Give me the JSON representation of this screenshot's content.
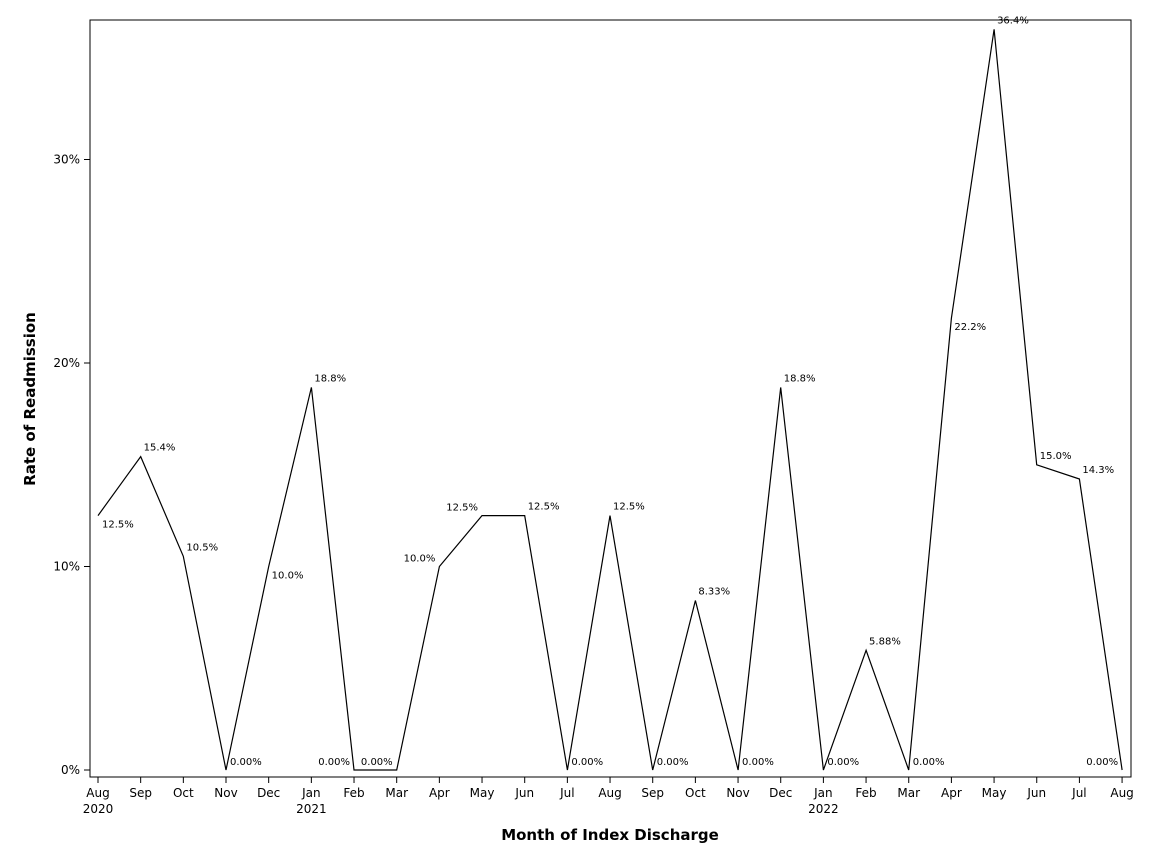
{
  "chart_data": {
    "type": "line",
    "title": "",
    "xlabel": "Month of Index Discharge",
    "ylabel": "Rate of Readmission",
    "ylim": [
      0,
      0.37
    ],
    "yticks": [
      0,
      0.1,
      0.2,
      0.3
    ],
    "ytick_labels": [
      "0%",
      "10%",
      "20%",
      "30%"
    ],
    "grid": false,
    "categories": [
      "Aug",
      "Sep",
      "Oct",
      "Nov",
      "Dec",
      "Jan",
      "Feb",
      "Mar",
      "Apr",
      "May",
      "Jun",
      "Jul",
      "Aug",
      "Sep",
      "Oct",
      "Nov",
      "Dec",
      "Jan",
      "Feb",
      "Mar",
      "Apr",
      "May",
      "Jun",
      "Jul",
      "Aug"
    ],
    "year_labels": [
      "2020",
      "",
      "",
      "",
      "",
      "2021",
      "",
      "",
      "",
      "",
      "",
      "",
      "",
      "",
      "",
      "",
      "",
      "2022",
      "",
      "",
      "",
      "",
      "",
      "",
      ""
    ],
    "values": [
      0.125,
      0.154,
      0.105,
      0.0,
      0.1,
      0.188,
      0.0,
      0.0,
      0.1,
      0.125,
      0.125,
      0.0,
      0.125,
      0.0,
      0.0833,
      0.0,
      0.188,
      0.0,
      0.0588,
      0.0,
      0.222,
      0.364,
      0.15,
      0.143,
      0.0
    ],
    "data_labels": [
      "12.5%",
      "15.4%",
      "10.5%",
      "0.00%",
      "10.0%",
      "18.8%",
      "0.00%",
      "0.00%",
      "10.0%",
      "12.5%",
      "12.5%",
      "0.00%",
      "12.5%",
      "0.00%",
      "8.33%",
      "0.00%",
      "18.8%",
      "0.00%",
      "5.88%",
      "0.00%",
      "22.2%",
      "36.4%",
      "15.0%",
      "14.3%",
      "0.00%"
    ],
    "line_color": "#000000"
  }
}
